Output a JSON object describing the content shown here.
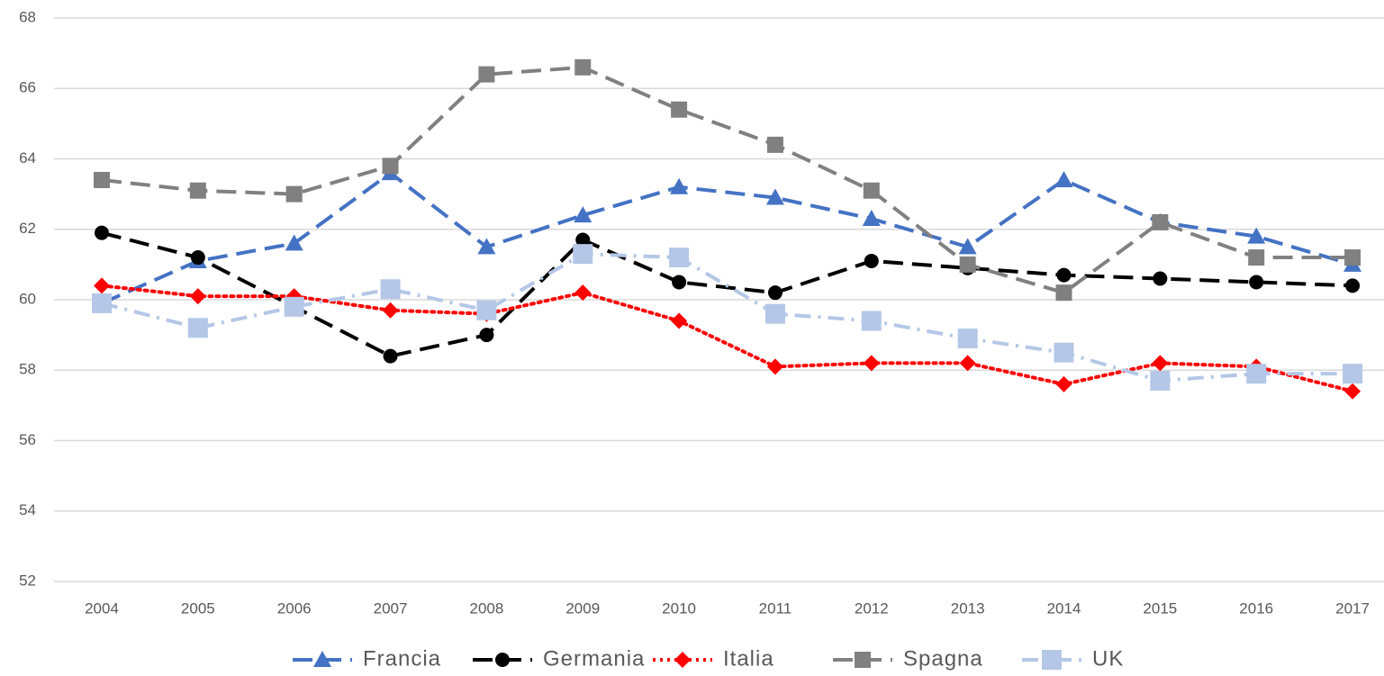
{
  "chart_data": {
    "type": "line",
    "categories": [
      "2004",
      "2005",
      "2006",
      "2007",
      "2008",
      "2009",
      "2010",
      "2011",
      "2012",
      "2013",
      "2014",
      "2015",
      "2016",
      "2017"
    ],
    "series": [
      {
        "name": "Francia",
        "color": "#4472c4",
        "marker": "triangle",
        "dash": "dashed",
        "values": [
          59.9,
          61.1,
          61.6,
          63.6,
          61.5,
          62.4,
          63.2,
          62.9,
          62.3,
          61.5,
          63.4,
          62.2,
          61.8,
          61.0
        ]
      },
      {
        "name": "Germania",
        "color": "#000000",
        "marker": "circle",
        "dash": "dashed",
        "values": [
          61.9,
          61.2,
          59.8,
          58.4,
          59.0,
          61.7,
          60.5,
          60.2,
          61.1,
          60.9,
          60.7,
          60.6,
          60.5,
          60.4
        ]
      },
      {
        "name": "Italia",
        "color": "#ff0000",
        "marker": "diamond",
        "dash": "dotted",
        "values": [
          60.4,
          60.1,
          60.1,
          59.7,
          59.6,
          60.2,
          59.4,
          58.1,
          58.2,
          58.2,
          57.6,
          58.2,
          58.1,
          57.4
        ]
      },
      {
        "name": "Spagna",
        "color": "#808080",
        "marker": "square",
        "dash": "dashed",
        "values": [
          63.4,
          63.1,
          63.0,
          63.8,
          66.4,
          66.6,
          65.4,
          64.4,
          63.1,
          61.0,
          60.2,
          62.2,
          61.2,
          61.2
        ]
      },
      {
        "name": "UK",
        "color": "#b4c7e7",
        "marker": "square",
        "dash": "dashdot",
        "values": [
          59.9,
          59.2,
          59.8,
          60.3,
          59.7,
          61.3,
          61.2,
          59.6,
          59.4,
          58.9,
          58.5,
          57.7,
          57.9,
          57.9
        ]
      }
    ],
    "ylim": [
      52,
      68
    ],
    "yticks": [
      52,
      54,
      56,
      58,
      60,
      62,
      64,
      66,
      68
    ],
    "grid": true,
    "legend": "bottom"
  }
}
